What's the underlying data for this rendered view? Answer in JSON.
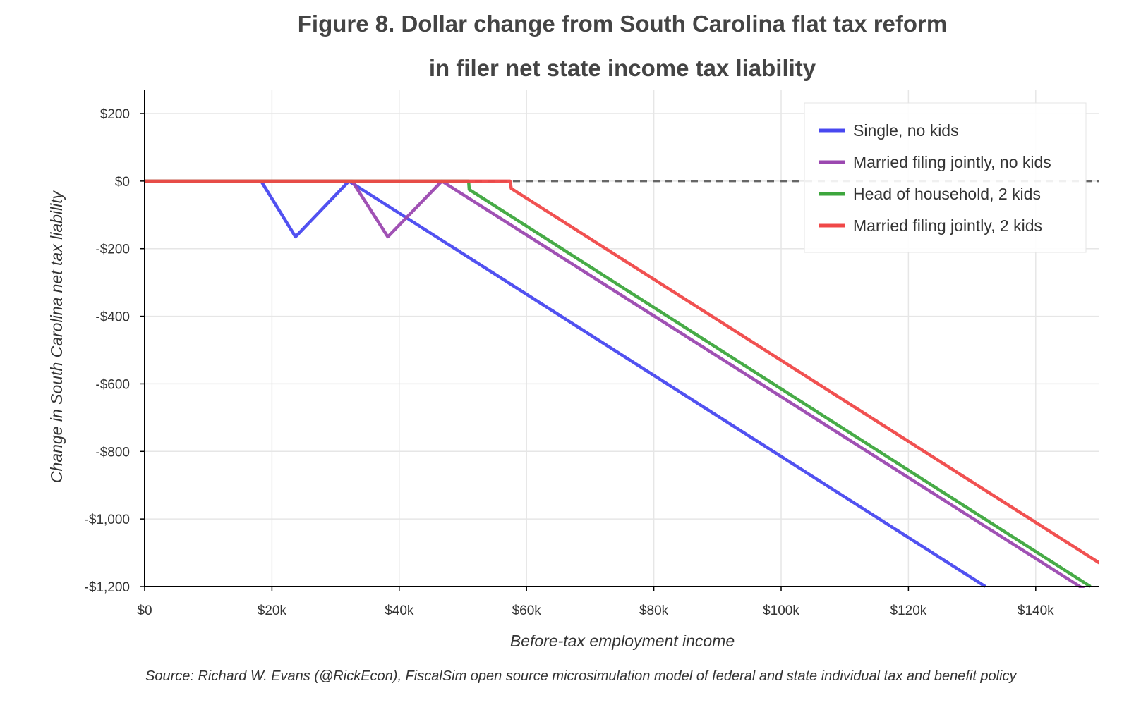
{
  "chart_data": {
    "type": "line",
    "title_line1": "Figure 8. Dollar change from South Carolina flat tax reform",
    "title_line2": "in filer net state income tax liability",
    "xlabel": "Before-tax employment income",
    "ylabel": "Change in South Carolina net tax liability",
    "source": "Source: Richard W. Evans (@RickEcon), FiscalSim open source microsimulation model of federal and state individual tax and benefit policy",
    "xlim": [
      0,
      150000
    ],
    "ylim": [
      -1200,
      270
    ],
    "x_ticks": [
      0,
      20000,
      40000,
      60000,
      80000,
      100000,
      120000,
      140000
    ],
    "x_tick_labels": [
      "$0",
      "$20k",
      "$40k",
      "$60k",
      "$80k",
      "$100k",
      "$120k",
      "$140k"
    ],
    "y_ticks": [
      200,
      0,
      -200,
      -400,
      -600,
      -800,
      -1000,
      -1200
    ],
    "y_tick_labels": [
      "$200",
      "$0",
      "-$200",
      "-$400",
      "-$600",
      "-$800",
      "-$1,000",
      "-$1,200"
    ],
    "grid": true,
    "legend_position": "top-right",
    "reference_line": {
      "y": 0,
      "style": "dashed",
      "color": "#666666"
    },
    "series": [
      {
        "name": "Single, no kids",
        "color": "#4848f0",
        "points": [
          [
            0,
            0
          ],
          [
            18300,
            0
          ],
          [
            23700,
            -165
          ],
          [
            32100,
            0
          ],
          [
            132100,
            -1200
          ]
        ]
      },
      {
        "name": "Married filing jointly, no kids",
        "color": "#9b48b0",
        "points": [
          [
            0,
            0
          ],
          [
            32600,
            0
          ],
          [
            38200,
            -165
          ],
          [
            46700,
            0
          ],
          [
            148200,
            -1215
          ]
        ]
      },
      {
        "name": "Head of household, 2 kids",
        "color": "#3da63d",
        "points": [
          [
            0,
            0
          ],
          [
            50900,
            0
          ],
          [
            51000,
            -25
          ],
          [
            148600,
            -1200
          ]
        ]
      },
      {
        "name": "Married filing jointly, 2 kids",
        "color": "#f04848",
        "points": [
          [
            0,
            0
          ],
          [
            57400,
            0
          ],
          [
            57600,
            -22
          ],
          [
            150000,
            -1130
          ]
        ]
      }
    ]
  }
}
